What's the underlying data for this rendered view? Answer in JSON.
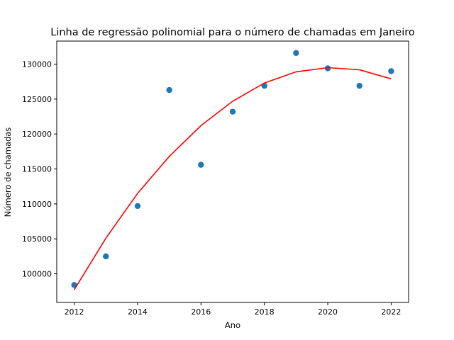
{
  "chart_data": {
    "type": "scatter",
    "title": "Linha de regressão polinomial para o número de chamadas em Janeiro",
    "xlabel": "Ano",
    "ylabel": "Número de chamadas",
    "xlim": [
      2011.45,
      2022.55
    ],
    "ylim": [
      95900,
      133300
    ],
    "xticks": [
      2012,
      2014,
      2016,
      2018,
      2020,
      2022
    ],
    "yticks": [
      100000,
      105000,
      110000,
      115000,
      120000,
      125000,
      130000
    ],
    "grid": false,
    "series": [
      {
        "type": "scatter",
        "color": "#1f77b4",
        "x": [
          2012,
          2013,
          2014,
          2015,
          2016,
          2017,
          2018,
          2019,
          2020,
          2021,
          2022
        ],
        "y": [
          98400,
          102500,
          109700,
          126300,
          115600,
          123200,
          126900,
          131600,
          129400,
          126900,
          129000
        ]
      },
      {
        "type": "line",
        "color": "#ff0000",
        "x": [
          2012,
          2013,
          2014,
          2015,
          2016,
          2017,
          2018,
          2019,
          2020,
          2021,
          2022
        ],
        "y": [
          97700,
          105100,
          111500,
          116800,
          121200,
          124700,
          127300,
          128900,
          129500,
          129200,
          127900
        ]
      }
    ]
  }
}
